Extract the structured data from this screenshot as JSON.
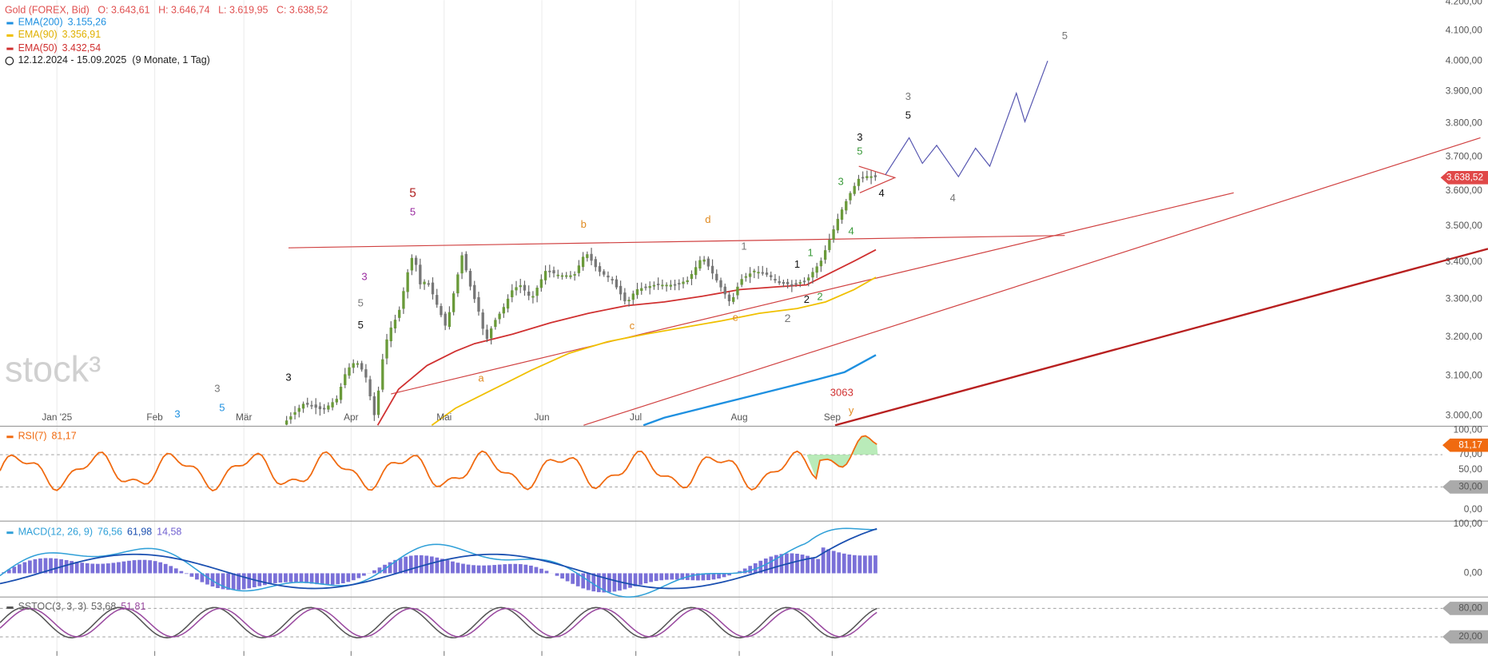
{
  "header": {
    "symbol": "Gold (FOREX, Bid)",
    "ohlc": [
      "O: 3.643,61",
      "H: 3.646,74",
      "L: 3.619,95",
      "C: 3.638,52"
    ]
  },
  "legend": [
    {
      "name": "EMA(200)",
      "value": "3.155,26"
    },
    {
      "name": "EMA(90)",
      "value": "3.356,91"
    },
    {
      "name": "EMA(50)",
      "value": "3.432,54"
    }
  ],
  "range": "12.12.2024 - 15.09.2025",
  "range_note": "(9 Monate, 1 Tag)",
  "watermark": "stock³",
  "price_axis": [
    "4.200,00",
    "4.100,00",
    "4.000,00",
    "3.900,00",
    "3.800,00",
    "3.700,00",
    "3.600,00",
    "3.500,00",
    "3.400,00",
    "3.300,00",
    "3.200,00",
    "3.100,00",
    "3.000,00"
  ],
  "price_badge": "3.638,52",
  "months": [
    "Jan '25",
    "Feb",
    "Mär",
    "Apr",
    "Mai",
    "Jun",
    "Jul",
    "Aug",
    "Sep"
  ],
  "annotations": [
    "5",
    "3",
    "5",
    "3",
    "5",
    "3",
    "4",
    "4",
    "4",
    "5",
    "5",
    "b",
    "d",
    "1",
    "1",
    "1",
    "3",
    "5",
    "5",
    "2",
    "2",
    "c",
    "e",
    "2",
    "a",
    "3",
    "3",
    "5",
    "3",
    "3063",
    "y"
  ],
  "rsi": {
    "name": "RSI(7)",
    "value": "81,17",
    "axis": [
      "100,00",
      "70,00",
      "50,00",
      "30,00",
      "0,00"
    ]
  },
  "macd": {
    "name": "MACD(12, 26, 9)",
    "values": [
      "76,56",
      "61,98",
      "14,58"
    ],
    "axis": [
      "100,00",
      "0,00"
    ]
  },
  "sstoc": {
    "name": "SSTOC(3, 3, 3)",
    "values": [
      "53,68",
      "51,81"
    ],
    "axis": [
      "80,00",
      "20,00"
    ]
  }
}
